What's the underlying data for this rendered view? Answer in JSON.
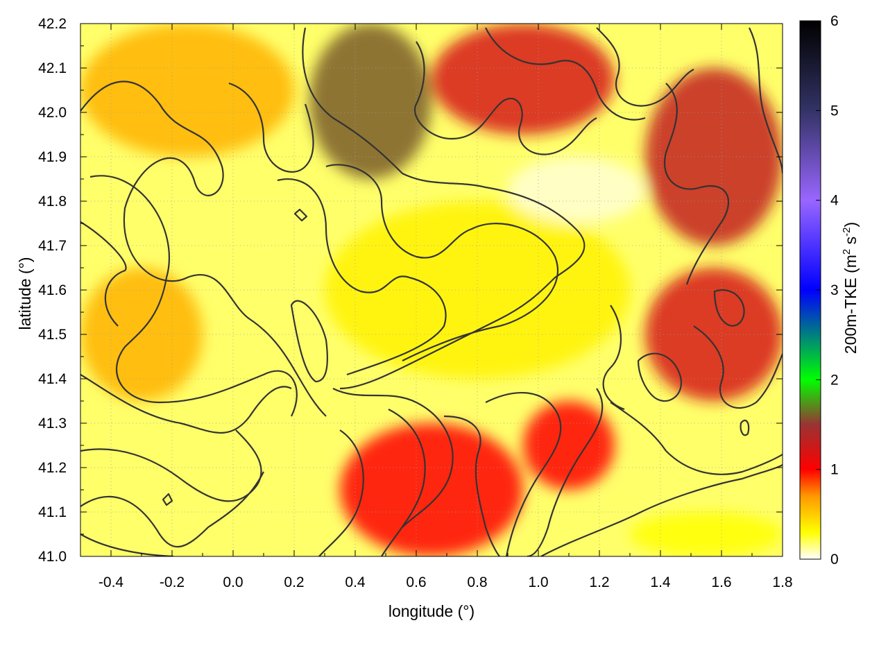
{
  "chart_data": {
    "type": "heatmap",
    "xlabel": "longitude (°)",
    "ylabel": "latitude (°)",
    "colorbar_label": {
      "base": "200m-TKE (m",
      "sup1": "2",
      "mid": " s",
      "sup2": "-2",
      "end": ")"
    },
    "xlim": [
      -0.5,
      1.8
    ],
    "ylim": [
      41.0,
      42.2
    ],
    "zlim": [
      0,
      6
    ],
    "x_ticks": [
      -0.4,
      -0.2,
      0.0,
      0.2,
      0.4,
      0.6,
      0.8,
      1.0,
      1.2,
      1.4,
      1.6,
      1.8
    ],
    "x_tick_labels": [
      "-0.4",
      "-0.2",
      "0.0",
      "0.2",
      "0.4",
      "0.6",
      "0.8",
      "1.0",
      "1.2",
      "1.4",
      "1.6",
      "1.8"
    ],
    "y_ticks": [
      41.0,
      41.1,
      41.2,
      41.3,
      41.4,
      41.5,
      41.6,
      41.7,
      41.8,
      41.9,
      42.0,
      42.1,
      42.2
    ],
    "y_tick_labels": [
      "41.0",
      "41.1",
      "41.2",
      "41.3",
      "41.4",
      "41.5",
      "41.6",
      "41.7",
      "41.8",
      "41.9",
      "42.0",
      "42.1",
      "42.2"
    ],
    "colorbar_ticks": [
      0,
      1,
      2,
      3,
      4,
      5,
      6
    ],
    "colorbar_tick_labels": [
      "0",
      "1",
      "2",
      "3",
      "4",
      "5",
      "6"
    ],
    "colormap": [
      {
        "value": 0.0,
        "color": "#ffffff"
      },
      {
        "value": 0.3,
        "color": "#ffff00"
      },
      {
        "value": 0.7,
        "color": "#ff9900"
      },
      {
        "value": 1.0,
        "color": "#ff0000"
      },
      {
        "value": 1.5,
        "color": "#993333"
      },
      {
        "value": 2.0,
        "color": "#00ff00"
      },
      {
        "value": 3.0,
        "color": "#0000ff"
      },
      {
        "value": 4.0,
        "color": "#9966ff"
      },
      {
        "value": 5.0,
        "color": "#333366"
      },
      {
        "value": 6.0,
        "color": "#000000"
      }
    ],
    "grid": true,
    "contours": "terrain elevation (dark lines)",
    "field_regions": [
      {
        "lon": [
          -0.5,
          0.2
        ],
        "lat": [
          41.9,
          42.2
        ],
        "level": 0.6
      },
      {
        "lon": [
          0.25,
          0.65
        ],
        "lat": [
          41.85,
          42.2
        ],
        "level": 1.6
      },
      {
        "lon": [
          0.65,
          1.25
        ],
        "lat": [
          41.95,
          42.2
        ],
        "level": 1.2
      },
      {
        "lon": [
          1.35,
          1.8
        ],
        "lat": [
          41.7,
          42.1
        ],
        "level": 1.3
      },
      {
        "lon": [
          1.35,
          1.8
        ],
        "lat": [
          41.35,
          41.65
        ],
        "level": 1.2
      },
      {
        "lon": [
          -0.5,
          -0.1
        ],
        "lat": [
          41.35,
          41.65
        ],
        "level": 0.6
      },
      {
        "lon": [
          0.35,
          0.95
        ],
        "lat": [
          41.0,
          41.3
        ],
        "level": 1.0
      },
      {
        "lon": [
          0.95,
          1.25
        ],
        "lat": [
          41.15,
          41.35
        ],
        "level": 1.0
      },
      {
        "lon": [
          1.3,
          1.8
        ],
        "lat": [
          41.0,
          41.1
        ],
        "level": 0.3
      },
      {
        "lon": [
          0.3,
          1.3
        ],
        "lat": [
          41.4,
          41.8
        ],
        "level": 0.35
      },
      {
        "lon": [
          0.9,
          1.35
        ],
        "lat": [
          41.75,
          41.9
        ],
        "level": 0.05
      }
    ]
  }
}
